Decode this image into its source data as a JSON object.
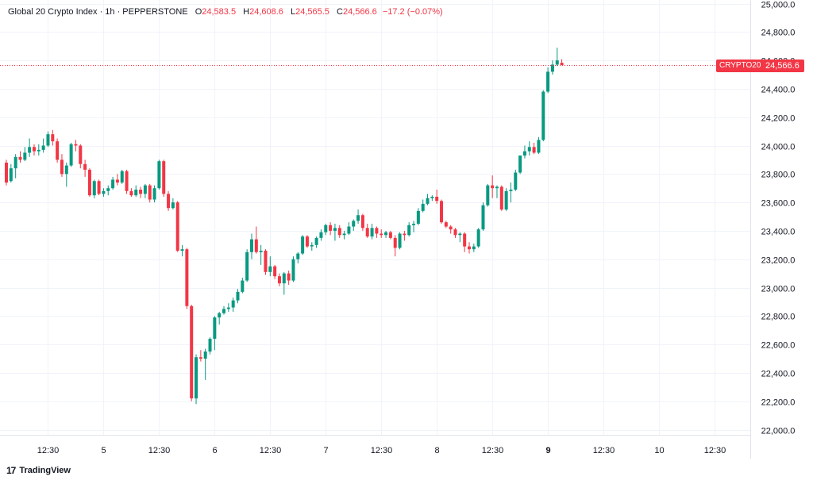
{
  "header": {
    "symbol": "Global 20 Crypto Index · 1h · PEPPERSTONE",
    "open_label": "O",
    "open": "24,583.5",
    "high_label": "H",
    "high": "24,608.6",
    "low_label": "L",
    "low": "24,565.5",
    "close_label": "C",
    "close": "24,566.6",
    "change": "−17.2 (−0.07%)"
  },
  "price_tag": {
    "symbol": "CRYPTO20",
    "price": "24,566.6"
  },
  "branding": {
    "logo_glyph": "17",
    "name": "TradingView"
  },
  "colors": {
    "up": "#089981",
    "down": "#f23645",
    "grid": "#f0f3fa",
    "text": "#131722"
  },
  "chart_data": {
    "type": "candlestick",
    "ylim": [
      21930,
      25030
    ],
    "last_price": 24566.6,
    "y_ticks": [
      {
        "value": 22000,
        "label": "22,000.0"
      },
      {
        "value": 22200,
        "label": "22,200.0"
      },
      {
        "value": 22400,
        "label": "22,400.0"
      },
      {
        "value": 22600,
        "label": "22,600.0"
      },
      {
        "value": 22800,
        "label": "22,800.0"
      },
      {
        "value": 23000,
        "label": "23,000.0"
      },
      {
        "value": 23200,
        "label": "23,200.0"
      },
      {
        "value": 23400,
        "label": "23,400.0"
      },
      {
        "value": 23600,
        "label": "23,600.0"
      },
      {
        "value": 23800,
        "label": "23,800.0"
      },
      {
        "value": 24000,
        "label": "24,000.0"
      },
      {
        "value": 24200,
        "label": "24,200.0"
      },
      {
        "value": 24400,
        "label": "24,400.0"
      },
      {
        "value": 24600,
        "label": "24,600.0"
      },
      {
        "value": 24800,
        "label": "24,800.0"
      },
      {
        "value": 25000,
        "label": "25,000.0"
      }
    ],
    "x_ticks": [
      {
        "index": 9,
        "label": "12:30",
        "bold": false
      },
      {
        "index": 21,
        "label": "5",
        "bold": false
      },
      {
        "index": 33,
        "label": "12:30",
        "bold": false
      },
      {
        "index": 45,
        "label": "6",
        "bold": false
      },
      {
        "index": 57,
        "label": "12:30",
        "bold": false
      },
      {
        "index": 69,
        "label": "7",
        "bold": false
      },
      {
        "index": 81,
        "label": "12:30",
        "bold": false
      },
      {
        "index": 93,
        "label": "8",
        "bold": false
      },
      {
        "index": 105,
        "label": "12:30",
        "bold": false
      },
      {
        "index": 117,
        "label": "9",
        "bold": true
      },
      {
        "index": 129,
        "label": "12:30",
        "bold": false
      },
      {
        "index": 141,
        "label": "10",
        "bold": false
      },
      {
        "index": 153,
        "label": "12:30",
        "bold": false
      }
    ],
    "candles": [
      {
        "o": 23880,
        "h": 23900,
        "l": 23720,
        "c": 23740
      },
      {
        "o": 23750,
        "h": 23870,
        "l": 23740,
        "c": 23840
      },
      {
        "o": 23840,
        "h": 23940,
        "l": 23770,
        "c": 23920
      },
      {
        "o": 23920,
        "h": 23960,
        "l": 23880,
        "c": 23900
      },
      {
        "o": 23900,
        "h": 23990,
        "l": 23890,
        "c": 23950
      },
      {
        "o": 23950,
        "h": 24050,
        "l": 23920,
        "c": 23990
      },
      {
        "o": 23990,
        "h": 24010,
        "l": 23930,
        "c": 23960
      },
      {
        "o": 23960,
        "h": 24010,
        "l": 23930,
        "c": 23970
      },
      {
        "o": 23970,
        "h": 24050,
        "l": 23950,
        "c": 24000
      },
      {
        "o": 24000,
        "h": 24100,
        "l": 23990,
        "c": 24080
      },
      {
        "o": 24080,
        "h": 24110,
        "l": 24000,
        "c": 24030
      },
      {
        "o": 24030,
        "h": 24050,
        "l": 23880,
        "c": 23900
      },
      {
        "o": 23900,
        "h": 23940,
        "l": 23780,
        "c": 23800
      },
      {
        "o": 23800,
        "h": 23880,
        "l": 23710,
        "c": 23860
      },
      {
        "o": 23860,
        "h": 24020,
        "l": 23850,
        "c": 24010
      },
      {
        "o": 24010,
        "h": 24040,
        "l": 23960,
        "c": 24000
      },
      {
        "o": 24000,
        "h": 24010,
        "l": 23840,
        "c": 23870
      },
      {
        "o": 23870,
        "h": 23900,
        "l": 23780,
        "c": 23830
      },
      {
        "o": 23830,
        "h": 23840,
        "l": 23640,
        "c": 23650
      },
      {
        "o": 23650,
        "h": 23760,
        "l": 23630,
        "c": 23750
      },
      {
        "o": 23750,
        "h": 23760,
        "l": 23650,
        "c": 23660
      },
      {
        "o": 23660,
        "h": 23700,
        "l": 23640,
        "c": 23680
      },
      {
        "o": 23680,
        "h": 23720,
        "l": 23650,
        "c": 23700
      },
      {
        "o": 23700,
        "h": 23780,
        "l": 23690,
        "c": 23760
      },
      {
        "o": 23760,
        "h": 23800,
        "l": 23720,
        "c": 23740
      },
      {
        "o": 23740,
        "h": 23830,
        "l": 23730,
        "c": 23820
      },
      {
        "o": 23820,
        "h": 23830,
        "l": 23660,
        "c": 23680
      },
      {
        "o": 23680,
        "h": 23700,
        "l": 23640,
        "c": 23650
      },
      {
        "o": 23650,
        "h": 23720,
        "l": 23640,
        "c": 23690
      },
      {
        "o": 23690,
        "h": 23710,
        "l": 23630,
        "c": 23660
      },
      {
        "o": 23660,
        "h": 23730,
        "l": 23630,
        "c": 23720
      },
      {
        "o": 23720,
        "h": 23730,
        "l": 23600,
        "c": 23620
      },
      {
        "o": 23620,
        "h": 23720,
        "l": 23600,
        "c": 23700
      },
      {
        "o": 23700,
        "h": 23900,
        "l": 23690,
        "c": 23890
      },
      {
        "o": 23890,
        "h": 23900,
        "l": 23640,
        "c": 23660
      },
      {
        "o": 23660,
        "h": 23680,
        "l": 23540,
        "c": 23560
      },
      {
        "o": 23560,
        "h": 23630,
        "l": 23550,
        "c": 23600
      },
      {
        "o": 23600,
        "h": 23610,
        "l": 23250,
        "c": 23260
      },
      {
        "o": 23260,
        "h": 23300,
        "l": 23220,
        "c": 23270
      },
      {
        "o": 23270,
        "h": 23280,
        "l": 22850,
        "c": 22870
      },
      {
        "o": 22870,
        "h": 22880,
        "l": 22200,
        "c": 22220
      },
      {
        "o": 22220,
        "h": 22530,
        "l": 22180,
        "c": 22510
      },
      {
        "o": 22510,
        "h": 22560,
        "l": 22480,
        "c": 22500
      },
      {
        "o": 22500,
        "h": 22570,
        "l": 22350,
        "c": 22550
      },
      {
        "o": 22550,
        "h": 22650,
        "l": 22530,
        "c": 22640
      },
      {
        "o": 22640,
        "h": 22800,
        "l": 22560,
        "c": 22790
      },
      {
        "o": 22790,
        "h": 22830,
        "l": 22740,
        "c": 22820
      },
      {
        "o": 22820,
        "h": 22870,
        "l": 22810,
        "c": 22850
      },
      {
        "o": 22850,
        "h": 22890,
        "l": 22830,
        "c": 22860
      },
      {
        "o": 22860,
        "h": 22930,
        "l": 22830,
        "c": 22910
      },
      {
        "o": 22910,
        "h": 22990,
        "l": 22890,
        "c": 22970
      },
      {
        "o": 22970,
        "h": 23070,
        "l": 22960,
        "c": 23050
      },
      {
        "o": 23050,
        "h": 23270,
        "l": 23040,
        "c": 23250
      },
      {
        "o": 23250,
        "h": 23380,
        "l": 23200,
        "c": 23340
      },
      {
        "o": 23340,
        "h": 23430,
        "l": 23240,
        "c": 23250
      },
      {
        "o": 23250,
        "h": 23300,
        "l": 23160,
        "c": 23260
      },
      {
        "o": 23260,
        "h": 23270,
        "l": 23090,
        "c": 23110
      },
      {
        "o": 23110,
        "h": 23220,
        "l": 23080,
        "c": 23150
      },
      {
        "o": 23150,
        "h": 23160,
        "l": 23060,
        "c": 23080
      },
      {
        "o": 23080,
        "h": 23100,
        "l": 23010,
        "c": 23030
      },
      {
        "o": 23030,
        "h": 23110,
        "l": 22950,
        "c": 23100
      },
      {
        "o": 23100,
        "h": 23120,
        "l": 23020,
        "c": 23050
      },
      {
        "o": 23050,
        "h": 23220,
        "l": 23040,
        "c": 23200
      },
      {
        "o": 23200,
        "h": 23250,
        "l": 23170,
        "c": 23240
      },
      {
        "o": 23240,
        "h": 23370,
        "l": 23230,
        "c": 23360
      },
      {
        "o": 23360,
        "h": 23370,
        "l": 23280,
        "c": 23290
      },
      {
        "o": 23290,
        "h": 23320,
        "l": 23260,
        "c": 23300
      },
      {
        "o": 23300,
        "h": 23360,
        "l": 23280,
        "c": 23350
      },
      {
        "o": 23350,
        "h": 23410,
        "l": 23330,
        "c": 23390
      },
      {
        "o": 23390,
        "h": 23450,
        "l": 23370,
        "c": 23440
      },
      {
        "o": 23440,
        "h": 23460,
        "l": 23370,
        "c": 23400
      },
      {
        "o": 23400,
        "h": 23450,
        "l": 23330,
        "c": 23420
      },
      {
        "o": 23420,
        "h": 23440,
        "l": 23350,
        "c": 23370
      },
      {
        "o": 23370,
        "h": 23400,
        "l": 23340,
        "c": 23380
      },
      {
        "o": 23380,
        "h": 23460,
        "l": 23370,
        "c": 23430
      },
      {
        "o": 23430,
        "h": 23480,
        "l": 23400,
        "c": 23470
      },
      {
        "o": 23470,
        "h": 23550,
        "l": 23450,
        "c": 23510
      },
      {
        "o": 23510,
        "h": 23520,
        "l": 23400,
        "c": 23420
      },
      {
        "o": 23420,
        "h": 23450,
        "l": 23350,
        "c": 23360
      },
      {
        "o": 23360,
        "h": 23450,
        "l": 23340,
        "c": 23420
      },
      {
        "o": 23420,
        "h": 23430,
        "l": 23350,
        "c": 23380
      },
      {
        "o": 23380,
        "h": 23410,
        "l": 23350,
        "c": 23370
      },
      {
        "o": 23370,
        "h": 23400,
        "l": 23350,
        "c": 23390
      },
      {
        "o": 23390,
        "h": 23400,
        "l": 23340,
        "c": 23350
      },
      {
        "o": 23350,
        "h": 23370,
        "l": 23220,
        "c": 23280
      },
      {
        "o": 23280,
        "h": 23390,
        "l": 23270,
        "c": 23380
      },
      {
        "o": 23380,
        "h": 23400,
        "l": 23330,
        "c": 23370
      },
      {
        "o": 23370,
        "h": 23460,
        "l": 23360,
        "c": 23440
      },
      {
        "o": 23440,
        "h": 23470,
        "l": 23390,
        "c": 23450
      },
      {
        "o": 23450,
        "h": 23560,
        "l": 23440,
        "c": 23540
      },
      {
        "o": 23540,
        "h": 23620,
        "l": 23530,
        "c": 23590
      },
      {
        "o": 23590,
        "h": 23660,
        "l": 23580,
        "c": 23630
      },
      {
        "o": 23630,
        "h": 23650,
        "l": 23610,
        "c": 23640
      },
      {
        "o": 23640,
        "h": 23690,
        "l": 23590,
        "c": 23610
      },
      {
        "o": 23610,
        "h": 23620,
        "l": 23450,
        "c": 23460
      },
      {
        "o": 23460,
        "h": 23470,
        "l": 23420,
        "c": 23430
      },
      {
        "o": 23430,
        "h": 23440,
        "l": 23380,
        "c": 23410
      },
      {
        "o": 23410,
        "h": 23420,
        "l": 23350,
        "c": 23370
      },
      {
        "o": 23370,
        "h": 23390,
        "l": 23320,
        "c": 23380
      },
      {
        "o": 23380,
        "h": 23390,
        "l": 23250,
        "c": 23290
      },
      {
        "o": 23290,
        "h": 23320,
        "l": 23240,
        "c": 23270
      },
      {
        "o": 23270,
        "h": 23310,
        "l": 23250,
        "c": 23290
      },
      {
        "o": 23290,
        "h": 23420,
        "l": 23280,
        "c": 23410
      },
      {
        "o": 23410,
        "h": 23600,
        "l": 23400,
        "c": 23580
      },
      {
        "o": 23580,
        "h": 23730,
        "l": 23570,
        "c": 23720
      },
      {
        "o": 23720,
        "h": 23790,
        "l": 23630,
        "c": 23700
      },
      {
        "o": 23700,
        "h": 23720,
        "l": 23630,
        "c": 23710
      },
      {
        "o": 23710,
        "h": 23720,
        "l": 23540,
        "c": 23550
      },
      {
        "o": 23550,
        "h": 23700,
        "l": 23540,
        "c": 23680
      },
      {
        "o": 23680,
        "h": 23740,
        "l": 23600,
        "c": 23690
      },
      {
        "o": 23690,
        "h": 23830,
        "l": 23680,
        "c": 23810
      },
      {
        "o": 23810,
        "h": 23930,
        "l": 23800,
        "c": 23930
      },
      {
        "o": 23930,
        "h": 24000,
        "l": 23910,
        "c": 23960
      },
      {
        "o": 23960,
        "h": 24030,
        "l": 23930,
        "c": 23990
      },
      {
        "o": 23990,
        "h": 24020,
        "l": 23940,
        "c": 23950
      },
      {
        "o": 23950,
        "h": 24060,
        "l": 23940,
        "c": 24040
      },
      {
        "o": 24040,
        "h": 24390,
        "l": 24030,
        "c": 24380
      },
      {
        "o": 24380,
        "h": 24550,
        "l": 24370,
        "c": 24520
      },
      {
        "o": 24520,
        "h": 24600,
        "l": 24500,
        "c": 24570
      },
      {
        "o": 24570,
        "h": 24690,
        "l": 24560,
        "c": 24600
      },
      {
        "o": 24583.5,
        "h": 24608.6,
        "l": 24565.5,
        "c": 24566.6
      }
    ]
  }
}
